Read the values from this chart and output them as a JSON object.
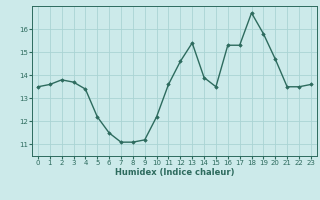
{
  "x": [
    0,
    1,
    2,
    3,
    4,
    5,
    6,
    7,
    8,
    9,
    10,
    11,
    12,
    13,
    14,
    15,
    16,
    17,
    18,
    19,
    20,
    21,
    22,
    23
  ],
  "y": [
    13.5,
    13.6,
    13.8,
    13.7,
    13.4,
    12.2,
    11.5,
    11.1,
    11.1,
    11.2,
    12.2,
    13.6,
    14.6,
    15.4,
    13.9,
    13.5,
    15.3,
    15.3,
    16.7,
    15.8,
    14.7,
    13.5,
    13.5,
    13.6
  ],
  "title": "",
  "xlabel": "Humidex (Indice chaleur)",
  "ylabel": "",
  "xlim": [
    -0.5,
    23.5
  ],
  "ylim": [
    10.5,
    17.0
  ],
  "yticks": [
    11,
    12,
    13,
    14,
    15,
    16
  ],
  "xticks": [
    0,
    1,
    2,
    3,
    4,
    5,
    6,
    7,
    8,
    9,
    10,
    11,
    12,
    13,
    14,
    15,
    16,
    17,
    18,
    19,
    20,
    21,
    22,
    23
  ],
  "line_color": "#2d6b5e",
  "marker": "D",
  "marker_size": 1.8,
  "bg_color": "#cceaea",
  "grid_color": "#aad4d4",
  "line_width": 1.0,
  "tick_fontsize": 5.0,
  "xlabel_fontsize": 6.0
}
